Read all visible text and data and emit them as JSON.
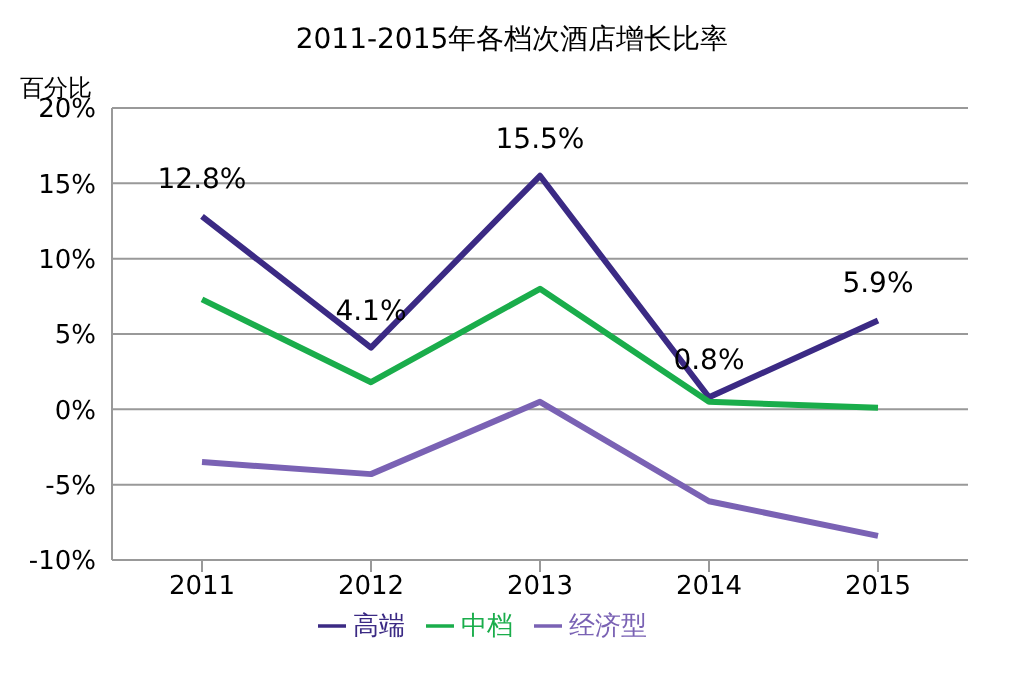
{
  "chart_data": {
    "type": "line",
    "title": "2011-2015年各档次酒店增长比率",
    "ylabel": "百分比",
    "categories": [
      "2011",
      "2012",
      "2013",
      "2014",
      "2015"
    ],
    "series": [
      {
        "name": "高端",
        "color": "#3b2a84",
        "values": [
          12.8,
          4.1,
          15.5,
          0.8,
          5.9
        ],
        "value_labels": [
          "12.8%",
          "4.1%",
          "15.5%",
          "0.8%",
          "5.9%"
        ]
      },
      {
        "name": "中档",
        "color": "#1aad4b",
        "values": [
          7.3,
          1.8,
          8.0,
          0.5,
          0.1
        ]
      },
      {
        "name": "经济型",
        "color": "#7a62b4",
        "values": [
          -3.5,
          -4.3,
          0.5,
          -6.1,
          -8.4
        ]
      }
    ],
    "ylim": [
      -10,
      20
    ],
    "yticks": [
      {
        "value": -10,
        "label": "-10%"
      },
      {
        "value": -5,
        "label": "-5%"
      },
      {
        "value": 0,
        "label": "0%"
      },
      {
        "value": 5,
        "label": "5%"
      },
      {
        "value": 10,
        "label": "10%"
      },
      {
        "value": 15,
        "label": "15%"
      },
      {
        "value": 20,
        "label": "20%"
      }
    ],
    "grid": "y",
    "legend": "bottom",
    "marker": "none",
    "line_style": "solid"
  }
}
